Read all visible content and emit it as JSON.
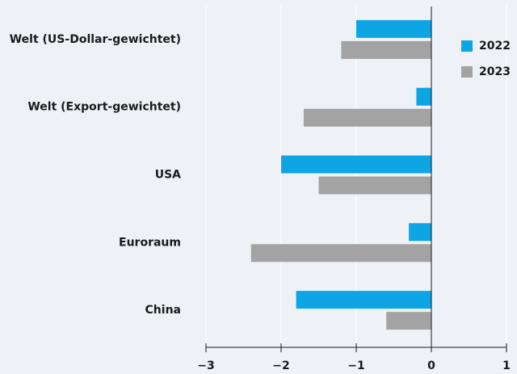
{
  "chart_data": {
    "type": "barh",
    "categories": [
      "Welt (US-Dollar-gewichtet)",
      "Welt (Export-gewichtet)",
      "USA",
      "Euroraum",
      "China"
    ],
    "series": [
      {
        "name": "2022",
        "color": "#0ea5e4",
        "values": [
          -1.0,
          -0.2,
          -2.0,
          -0.3,
          -1.8
        ]
      },
      {
        "name": "2023",
        "color": "#a3a3a3",
        "values": [
          -1.2,
          -1.7,
          -1.5,
          -2.4,
          -0.6
        ]
      }
    ],
    "xlim": [
      -3,
      1
    ],
    "xticks": [
      {
        "value": -3,
        "label": "−3"
      },
      {
        "value": -2,
        "label": "−2"
      },
      {
        "value": -1,
        "label": "−1"
      },
      0,
      1
    ],
    "grid": true,
    "legend": "upper right"
  }
}
